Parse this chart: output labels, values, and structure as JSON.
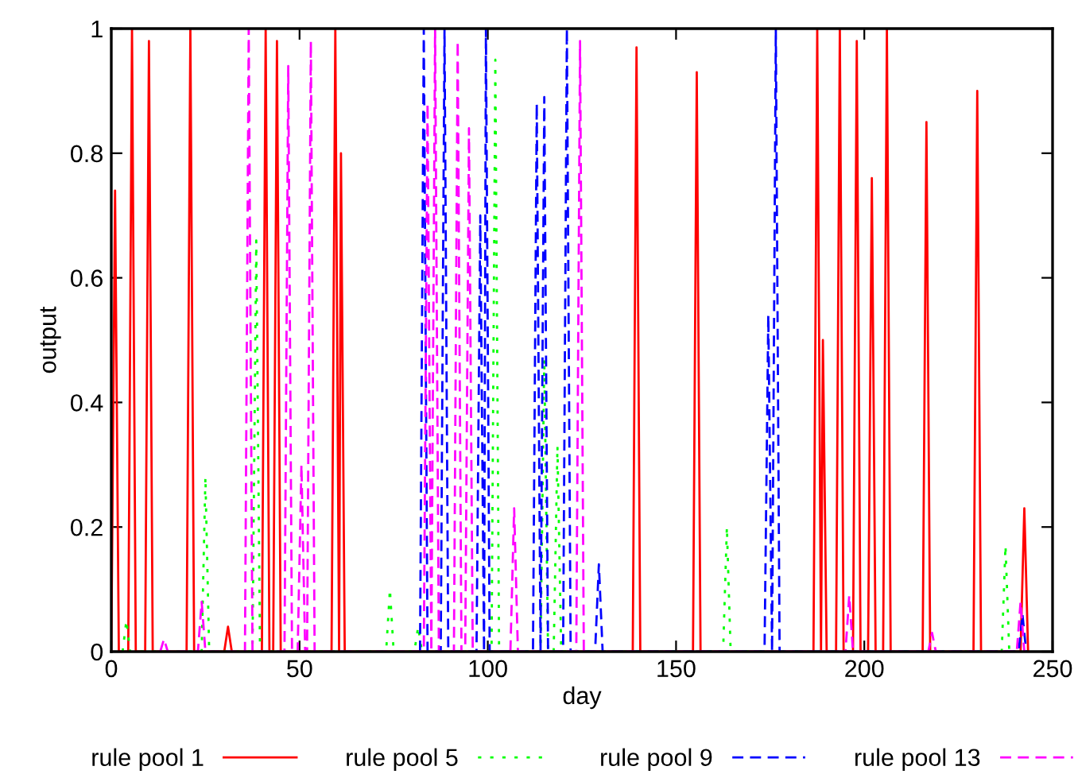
{
  "chart_data": {
    "type": "line",
    "xlabel": "day",
    "ylabel": "output",
    "xlim": [
      0,
      250
    ],
    "xticks": [
      0,
      50,
      100,
      150,
      200,
      250
    ],
    "ylim": [
      0,
      1
    ],
    "yticks": [
      0,
      0.2,
      0.4,
      0.6,
      0.8,
      1
    ],
    "grid": false,
    "legend": "bottom",
    "series": [
      {
        "name": "rule pool 1",
        "color": "#ff0000",
        "line_style": "solid",
        "x": [
          0,
          1,
          2,
          4.5,
          5.5,
          6.5,
          9,
          10,
          11,
          20,
          21,
          22,
          30,
          31,
          32,
          40,
          41,
          42,
          43,
          44,
          45,
          58.5,
          59.5,
          60.5,
          61,
          62,
          138.5,
          139.5,
          140.5,
          154.5,
          155.5,
          156.5,
          186.5,
          187.5,
          188.5,
          189,
          190,
          192.5,
          193.5,
          194.5,
          197,
          198,
          199,
          201,
          202,
          203,
          205,
          206,
          207,
          215.5,
          216.5,
          217.5,
          229,
          230,
          231,
          241.5,
          242.5,
          243.5
        ],
        "values": [
          0,
          0.74,
          0,
          0,
          1,
          0,
          0,
          0.98,
          0,
          0,
          1,
          0,
          0,
          0.04,
          0,
          0,
          1,
          0,
          0,
          0.98,
          0,
          0,
          1,
          0,
          0.8,
          0,
          0,
          0.97,
          0,
          0,
          0.93,
          0,
          0,
          1,
          0,
          0.5,
          0,
          0,
          1,
          0,
          0,
          0.98,
          0,
          0,
          0.76,
          0,
          0,
          1,
          0,
          0,
          0.85,
          0,
          0,
          0.9,
          0,
          0,
          0.23,
          0
        ]
      },
      {
        "name": "rule pool 5",
        "color": "#00ff00",
        "line_style": "dotted",
        "x": [
          3,
          4,
          5,
          24,
          25,
          26,
          37.5,
          38.5,
          39.5,
          73,
          74,
          75,
          80.5,
          81.5,
          82.5,
          101,
          102,
          103,
          114,
          115,
          116,
          117.5,
          118.5,
          119.5,
          162.5,
          163.5,
          164.5,
          236.5,
          237.5,
          238.5
        ],
        "values": [
          0,
          0.05,
          0,
          0,
          0.28,
          0,
          0,
          0.66,
          0,
          0,
          0.1,
          0,
          0,
          0.04,
          0,
          0,
          0.95,
          0,
          0,
          0.47,
          0,
          0,
          0.33,
          0,
          0,
          0.2,
          0,
          0,
          0.17,
          0
        ]
      },
      {
        "name": "rule pool 9",
        "color": "#0000ff",
        "line_style": "dashed",
        "x": [
          82,
          83,
          84,
          87.5,
          88.5,
          89.5,
          97,
          98,
          99,
          99.5,
          100.5,
          112,
          113,
          114,
          115,
          116,
          120,
          121,
          122,
          128.5,
          129.5,
          130.5,
          173.5,
          174.5,
          175.5,
          176.5,
          177.5,
          241,
          242,
          243
        ],
        "values": [
          0,
          1,
          0,
          0,
          1,
          0,
          0,
          0.7,
          0,
          1,
          0,
          0,
          0.88,
          0,
          0.89,
          0,
          0,
          1,
          0,
          0,
          0.14,
          0,
          0,
          0.54,
          0,
          1,
          0,
          0,
          0.06,
          0
        ]
      },
      {
        "name": "rule pool 13",
        "color": "#ff00ff",
        "line_style": "dashed",
        "x": [
          13,
          14,
          15,
          23,
          24,
          25,
          35.5,
          36.5,
          37.5,
          46,
          47,
          48,
          49.5,
          50.5,
          51.5,
          52,
          53,
          54,
          83,
          84,
          85,
          86,
          87,
          91,
          92,
          93,
          94,
          95,
          96,
          106,
          107,
          108,
          123.5,
          124.5,
          125.5,
          195,
          196,
          197,
          217,
          218,
          219,
          240.5,
          241.5,
          242.5
        ],
        "values": [
          0,
          0.02,
          0,
          0,
          0.08,
          0,
          0,
          1,
          0,
          0,
          0.94,
          0,
          0,
          0.3,
          0,
          0,
          0.98,
          0,
          0,
          0.88,
          0,
          1,
          0,
          0,
          0.98,
          0,
          0,
          0.84,
          0,
          0,
          0.23,
          0,
          0,
          0.98,
          0,
          0,
          0.09,
          0,
          0,
          0.03,
          0,
          0,
          0.08,
          0
        ]
      }
    ]
  }
}
